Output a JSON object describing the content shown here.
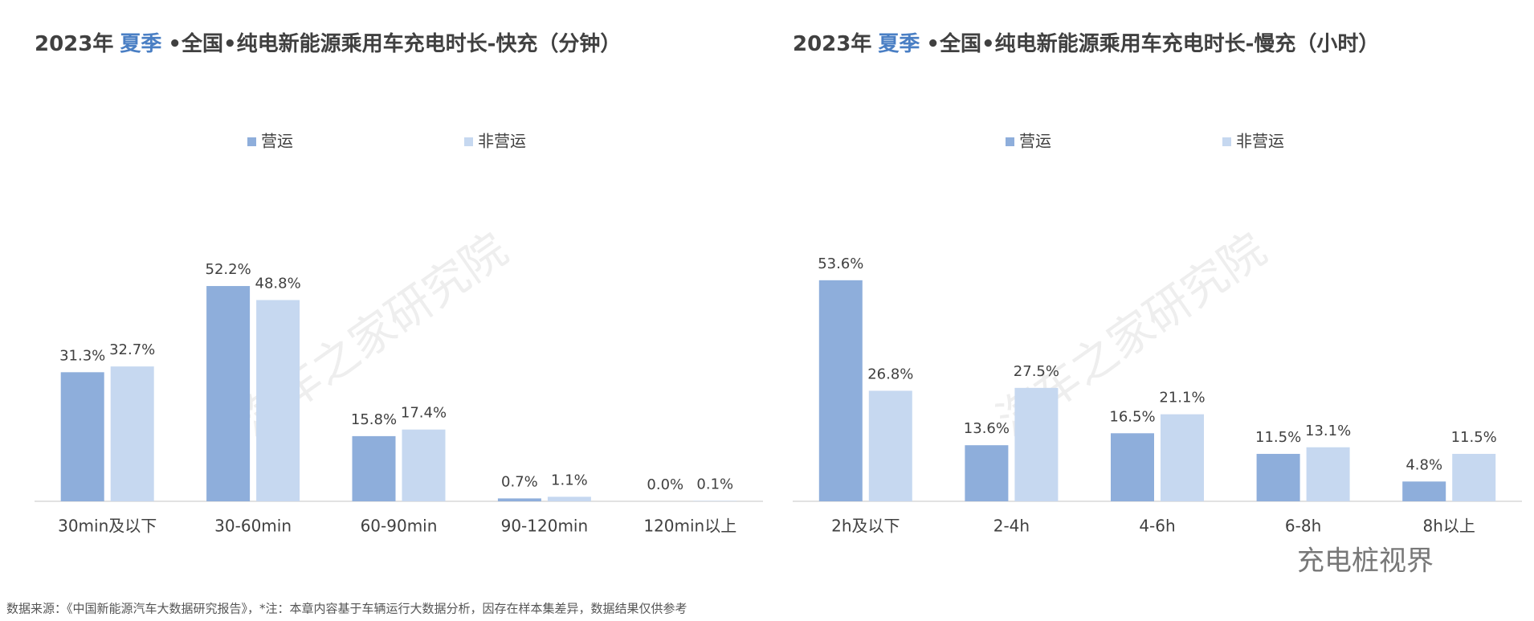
{
  "chart_data": [
    {
      "type": "bar",
      "title_prefix": "2023年",
      "title_highlight": "夏季",
      "title_rest": "•全国•纯电新能源乘用车充电时长-快充（分钟）",
      "categories": [
        "30min及以下",
        "30-60min",
        "60-90min",
        "90-120min",
        "120min以上"
      ],
      "series": [
        {
          "name": "营运",
          "color": "#8eaedb",
          "values": [
            31.3,
            52.2,
            15.8,
            0.7,
            0.0
          ],
          "value_labels": [
            "31.3%",
            "52.2%",
            "15.8%",
            "0.7%",
            "0.0%"
          ]
        },
        {
          "name": "非营运",
          "color": "#c6d8f0",
          "values": [
            32.7,
            48.8,
            17.4,
            1.1,
            0.1
          ],
          "value_labels": [
            "32.7%",
            "48.8%",
            "17.4%",
            "1.1%",
            "0.1%"
          ]
        }
      ],
      "ylim": [
        0,
        60
      ],
      "watermark": "汽车之家研究院"
    },
    {
      "type": "bar",
      "title_prefix": "2023年",
      "title_highlight": "夏季",
      "title_rest": "•全国•纯电新能源乘用车充电时长-慢充（小时）",
      "categories": [
        "2h及以下",
        "2-4h",
        "4-6h",
        "6-8h",
        "8h以上"
      ],
      "series": [
        {
          "name": "营运",
          "color": "#8eaedb",
          "values": [
            53.6,
            13.6,
            16.5,
            11.5,
            4.8
          ],
          "value_labels": [
            "53.6%",
            "13.6%",
            "16.5%",
            "11.5%",
            "4.8%"
          ]
        },
        {
          "name": "非营运",
          "color": "#c6d8f0",
          "values": [
            26.8,
            27.5,
            21.1,
            13.1,
            11.5
          ],
          "value_labels": [
            "26.8%",
            "27.5%",
            "21.1%",
            "13.1%",
            "11.5%"
          ]
        }
      ],
      "ylim": [
        0,
        60
      ],
      "watermark": "汽车之家研究院"
    }
  ],
  "logo": "充电桩视界",
  "footer": "数据来源：《中国新能源汽车大数据研究报告》，*注：本章内容基于车辆运行大数据分析，因存在样本集差异，数据结果仅供参考"
}
